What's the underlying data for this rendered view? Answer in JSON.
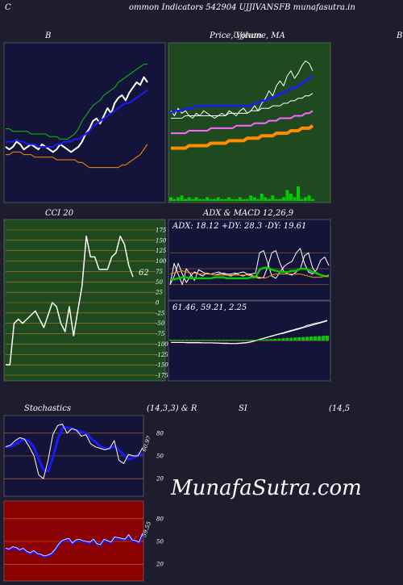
{
  "header": {
    "title": "ommon  Indicators 542904  UJJIVANSFB munafasutra.in",
    "left_letter": "C"
  },
  "watermark": "MunafaSutra.com",
  "panels": {
    "bollinger": {
      "title": "B"
    },
    "price_ma": {
      "title": "Price,  Volume,  MA",
      "overlay": "Ujjivan",
      "edge": "B"
    },
    "cci": {
      "title": "CCI 20",
      "last_value": "62",
      "ticks": [
        "175",
        "150",
        "125",
        "100",
        "75",
        "50",
        "25",
        "0",
        "-25",
        "-50",
        "-75",
        "-100",
        "-125",
        "-150",
        "-175"
      ]
    },
    "adx_macd": {
      "title": "ADX  & MACD 12,26,9",
      "adx_text": "ADX: 18.12  +DY: 28.3 -DY: 19.61",
      "macd_text": "61.46,  59.21,  2.25"
    },
    "stoch": {
      "title": "Stochastics",
      "params": "(14,3,3) & R",
      "last_value": "60.97",
      "ticks": [
        "80",
        "50",
        "20"
      ]
    },
    "rsi": {
      "title": "SI",
      "params": "(14,5",
      "last_value": "59.55",
      "ticks": [
        "80",
        "50",
        "20"
      ]
    }
  },
  "colors": {
    "background": "#1d1d2e",
    "green_panel": "#1f4a1f",
    "red_panel": "#8b0000",
    "navy_panel": "#14143a",
    "line_white": "#ffffff",
    "line_blue": "#1a1aff",
    "line_green": "#00cc00",
    "line_orange": "#ff8c00",
    "grid": "#c8781e"
  },
  "chart_data": [
    {
      "type": "line",
      "title": "B",
      "x": [
        1,
        2,
        3,
        4,
        5,
        6,
        7,
        8,
        9,
        10,
        11,
        12,
        13,
        14,
        15,
        16,
        17,
        18,
        19,
        20,
        21,
        22,
        23,
        24,
        25,
        26,
        27,
        28,
        29,
        30,
        31,
        32,
        33,
        34,
        35,
        36,
        37,
        38,
        39,
        40
      ],
      "series": [
        {
          "values": [
            45,
            44,
            45,
            47,
            46,
            44,
            45,
            46,
            45,
            44,
            46,
            45,
            44,
            43,
            44,
            46,
            45,
            44,
            43,
            44,
            45,
            47,
            50,
            52,
            55,
            56,
            54,
            57,
            60,
            58,
            62,
            64,
            65,
            63,
            66,
            68,
            70,
            69,
            72,
            70
          ]
        },
        {
          "values": [
            47,
            47,
            47,
            48,
            47,
            47,
            46,
            46,
            46,
            45,
            45,
            45,
            45,
            45,
            46,
            46,
            47,
            47,
            47,
            48,
            48,
            49,
            50,
            51,
            53,
            54,
            55,
            56,
            57,
            58,
            59,
            60,
            61,
            62,
            62,
            63,
            64,
            65,
            66,
            67
          ]
        },
        {
          "values": [
            52,
            52,
            51,
            51,
            51,
            51,
            51,
            50,
            50,
            50,
            50,
            50,
            49,
            49,
            49,
            48,
            48,
            48,
            49,
            50,
            52,
            55,
            57,
            59,
            61,
            62,
            63,
            65,
            66,
            67,
            68,
            70,
            71,
            72,
            73,
            74,
            75,
            76,
            77,
            77
          ]
        },
        {
          "values": [
            42,
            42,
            43,
            43,
            43,
            42,
            42,
            42,
            41,
            41,
            41,
            41,
            41,
            41,
            40,
            40,
            40,
            40,
            40,
            40,
            39,
            39,
            38,
            37,
            37,
            37,
            37,
            37,
            37,
            37,
            37,
            37,
            38,
            38,
            39,
            40,
            41,
            42,
            44,
            46
          ]
        }
      ]
    },
    {
      "type": "line",
      "title": "Price,  Volume,  MA",
      "x": [
        1,
        2,
        3,
        4,
        5,
        6,
        7,
        8,
        9,
        10,
        11,
        12,
        13,
        14,
        15,
        16,
        17,
        18,
        19,
        20,
        21,
        22,
        23,
        24,
        25,
        26,
        27,
        28,
        29,
        30,
        31,
        32,
        33,
        34,
        35,
        36,
        37,
        38,
        39,
        40
      ],
      "series": [
        {
          "values": [
            60,
            58,
            61,
            59,
            60,
            58,
            57,
            59,
            58,
            60,
            59,
            58,
            57,
            58,
            59,
            58,
            60,
            59,
            58,
            60,
            61,
            59,
            60,
            62,
            60,
            63,
            65,
            68,
            66,
            70,
            72,
            70,
            74,
            76,
            73,
            75,
            78,
            80,
            79,
            76
          ]
        },
        {
          "values": [
            59,
            60,
            60,
            60,
            61,
            61,
            61,
            62,
            62,
            62,
            62,
            62,
            62,
            62,
            62,
            62,
            62,
            62,
            62,
            62,
            62,
            62,
            62,
            63,
            63,
            64,
            64,
            65,
            65,
            66,
            67,
            67,
            68,
            69,
            69,
            70,
            71,
            72,
            73,
            74
          ]
        },
        {
          "values": [
            57,
            57,
            57,
            57,
            58,
            58,
            58,
            58,
            58,
            58,
            58,
            58,
            58,
            58,
            58,
            58,
            59,
            59,
            59,
            59,
            59,
            59,
            60,
            60,
            60,
            61,
            61,
            61,
            62,
            62,
            62,
            63,
            63,
            64,
            64,
            65,
            65,
            66,
            66,
            67
          ]
        },
        {
          "values": [
            51,
            51,
            51,
            51,
            51,
            52,
            52,
            52,
            52,
            52,
            52,
            53,
            53,
            53,
            53,
            53,
            53,
            53,
            54,
            54,
            54,
            54,
            54,
            55,
            55,
            55,
            55,
            56,
            56,
            56,
            57,
            57,
            57,
            57,
            58,
            58,
            58,
            59,
            59,
            60
          ]
        },
        {
          "values": [
            45,
            45,
            45,
            45,
            45,
            46,
            46,
            46,
            46,
            46,
            46,
            47,
            47,
            47,
            47,
            47,
            48,
            48,
            48,
            48,
            48,
            49,
            49,
            49,
            49,
            50,
            50,
            50,
            50,
            51,
            51,
            51,
            51,
            52,
            52,
            52,
            53,
            53,
            53,
            54
          ]
        }
      ],
      "volume": [
        2,
        1,
        2,
        3,
        1,
        2,
        1,
        2,
        1,
        1,
        2,
        1,
        1,
        2,
        1,
        1,
        2,
        1,
        1,
        2,
        1,
        1,
        3,
        2,
        1,
        4,
        2,
        1,
        3,
        1,
        1,
        2,
        6,
        4,
        2,
        8,
        1,
        2,
        3,
        1
      ]
    },
    {
      "type": "line",
      "title": "CCI 20",
      "ylim": [
        -175,
        175
      ],
      "values": [
        -150,
        -150,
        -50,
        -40,
        -50,
        -40,
        -30,
        -20,
        -40,
        -60,
        -30,
        0,
        -10,
        -50,
        -70,
        -10,
        -80,
        -20,
        40,
        160,
        110,
        110,
        80,
        80,
        80,
        110,
        120,
        160,
        140,
        90,
        62
      ]
    },
    {
      "type": "line",
      "title": "ADX  & MACD 12,26,9",
      "x": [
        1,
        2,
        3,
        4,
        5,
        6,
        7,
        8,
        9,
        10,
        11,
        12,
        13,
        14,
        15,
        16,
        17,
        18,
        19,
        20,
        21,
        22,
        23,
        24,
        25,
        26,
        27,
        28,
        29,
        30,
        31,
        32,
        33,
        34,
        35,
        36,
        37,
        38,
        39,
        40
      ],
      "series": [
        {
          "values": [
            10,
            30,
            20,
            10,
            25,
            20,
            14,
            24,
            22,
            20,
            20,
            21,
            22,
            20,
            19,
            18,
            20,
            21,
            22,
            20,
            20,
            21,
            40,
            42,
            30,
            18,
            16,
            22,
            27,
            30,
            32,
            40,
            44,
            30,
            22,
            20,
            24,
            33,
            36,
            28
          ]
        },
        {
          "values": [
            10,
            18,
            30,
            20,
            12,
            18,
            22,
            20,
            18,
            21,
            20,
            19,
            20,
            21,
            20,
            20,
            21,
            19,
            18,
            20,
            19,
            17,
            16,
            17,
            27,
            40,
            42,
            30,
            22,
            20,
            19,
            22,
            25,
            37,
            40,
            26,
            20,
            19,
            18,
            19
          ]
        },
        {
          "values": [
            15,
            15,
            16,
            17,
            17,
            16,
            16,
            16,
            16,
            16,
            16,
            17,
            17,
            17,
            16,
            16,
            16,
            16,
            16,
            16,
            17,
            17,
            24,
            26,
            26,
            24,
            23,
            22,
            22,
            22,
            23,
            23,
            25,
            25,
            24,
            22,
            21,
            19,
            18,
            18
          ]
        },
        {
          "values": [
            20,
            21,
            22,
            23,
            22,
            21,
            21,
            20,
            20,
            20,
            20,
            19,
            19,
            19,
            19,
            19,
            19,
            19,
            19,
            19,
            18,
            18,
            17,
            16,
            17,
            19,
            20,
            20,
            20,
            20,
            20,
            20,
            20,
            19,
            18,
            17,
            17,
            17,
            18,
            18
          ]
        }
      ],
      "macd": [
        2,
        2,
        2,
        2,
        1,
        1,
        1,
        1,
        1,
        1,
        1,
        0,
        0,
        -1,
        -1,
        -1,
        -1,
        0,
        1,
        2,
        4,
        7,
        10,
        13,
        16,
        19,
        22,
        25,
        28,
        31,
        34,
        37,
        40,
        43,
        47,
        50,
        53,
        55,
        58,
        61
      ],
      "signal": [
        2,
        2,
        2,
        2,
        2,
        2,
        2,
        2,
        1,
        1,
        1,
        1,
        0,
        0,
        0,
        -1,
        -1,
        -1,
        0,
        1,
        3,
        6,
        9,
        12,
        15,
        18,
        21,
        24,
        26,
        29,
        32,
        35,
        38,
        41,
        44,
        47,
        50,
        53,
        56,
        59
      ]
    },
    {
      "type": "line",
      "title": "Stochastics",
      "ylim": [
        0,
        100
      ],
      "values": [
        62,
        64,
        70,
        74,
        72,
        62,
        50,
        25,
        20,
        45,
        78,
        90,
        92,
        80,
        86,
        84,
        76,
        78,
        66,
        62,
        60,
        58,
        60,
        70,
        44,
        40,
        52,
        50,
        50,
        61
      ]
    },
    {
      "type": "line",
      "title": "SI",
      "ylim": [
        0,
        100
      ],
      "values": [
        40,
        39,
        42,
        41,
        38,
        40,
        36,
        34,
        37,
        33,
        32,
        30,
        31,
        33,
        38,
        45,
        50,
        52,
        53,
        47,
        51,
        52,
        50,
        49,
        48,
        52,
        46,
        45,
        52,
        50,
        48,
        55,
        54,
        53,
        52,
        58,
        51,
        50,
        48,
        60
      ]
    }
  ]
}
